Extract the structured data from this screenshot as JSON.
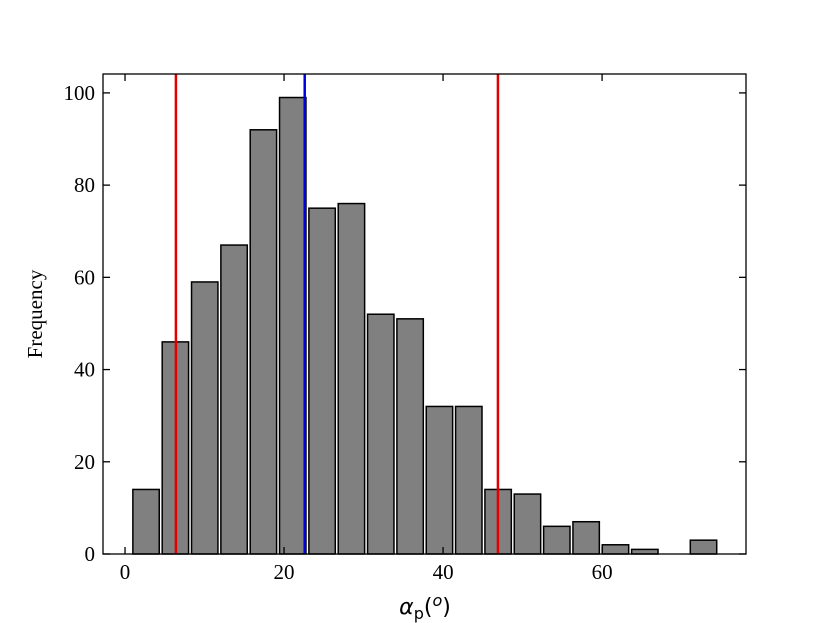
{
  "chart_data": {
    "type": "histogram",
    "x_label": [
      "α",
      "p",
      "(",
      "o",
      ")"
    ],
    "y_label": "Frequency",
    "bins": [
      0.8,
      4.49,
      8.18,
      11.87,
      15.56,
      19.25,
      22.94,
      26.63,
      30.32,
      34.01,
      37.7,
      41.39,
      45.08,
      48.77,
      52.46,
      56.15,
      59.84,
      63.53,
      67.22,
      70.91,
      74.6
    ],
    "counts": [
      14,
      46,
      59,
      67,
      92,
      99,
      75,
      76,
      52,
      51,
      32,
      32,
      14,
      13,
      6,
      7,
      2,
      1,
      0,
      3
    ],
    "color": "#808080",
    "edgecolor": "#000000",
    "rwidth": 0.9,
    "vlines": [
      {
        "value": 6.4,
        "color": "#e00000"
      },
      {
        "value": 22.6,
        "color": "#0000e0"
      },
      {
        "value": 46.9,
        "color": "#e00000"
      }
    ],
    "xlim": [
      -2.77,
      78.1
    ],
    "ylim": [
      0,
      104.1
    ],
    "xticks": [
      0,
      20,
      40,
      60
    ],
    "yticks": [
      0,
      20,
      40,
      60,
      80,
      100
    ],
    "grid": false
  }
}
